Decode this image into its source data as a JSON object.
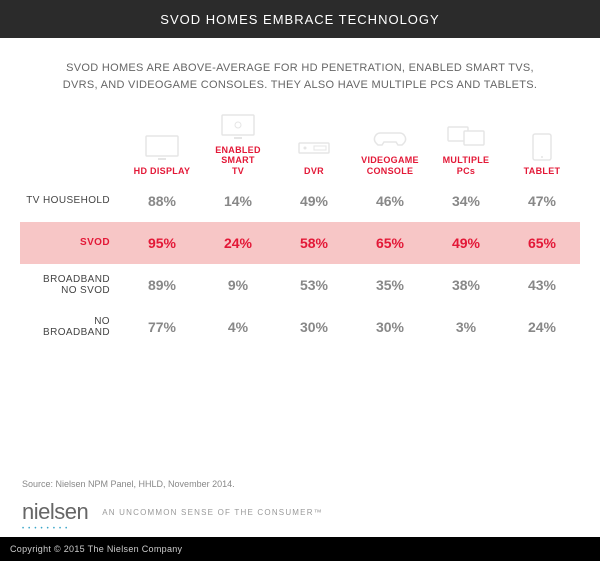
{
  "title": "SVOD HOMES EMBRACE TECHNOLOGY",
  "subtitle": "SVOD HOMES ARE ABOVE-AVERAGE FOR HD PENETRATION, ENABLED SMART TVS, DVRS, AND VIDEOGAME CONSOLES. THEY ALSO HAVE MULTIPLE PCS AND TABLETS.",
  "accent": "#e31837",
  "highlight_bg": "#f7c6c6",
  "header_fg": "#e31837",
  "value_fg": "#888888",
  "title_bg": "#2b2b2b",
  "columns": [
    {
      "label": "HD DISPLAY",
      "icon": "tv"
    },
    {
      "label": "ENABLED SMART TV",
      "icon": "smarttv"
    },
    {
      "label": "DVR",
      "icon": "dvr"
    },
    {
      "label": "VIDEOGAME CONSOLE",
      "icon": "console"
    },
    {
      "label": "MULTIPLE PCs",
      "icon": "pcs"
    },
    {
      "label": "TABLET",
      "icon": "tablet"
    }
  ],
  "rows": [
    {
      "label": "TV HOUSEHOLD",
      "values": [
        "88%",
        "14%",
        "49%",
        "46%",
        "34%",
        "47%"
      ],
      "highlight": false
    },
    {
      "label": "SVOD",
      "values": [
        "95%",
        "24%",
        "58%",
        "65%",
        "49%",
        "65%"
      ],
      "highlight": true
    },
    {
      "label": "BROADBAND NO SVOD",
      "values": [
        "89%",
        "9%",
        "53%",
        "35%",
        "38%",
        "43%"
      ],
      "highlight": false
    },
    {
      "label": "NO BROADBAND",
      "values": [
        "77%",
        "4%",
        "30%",
        "30%",
        "3%",
        "24%"
      ],
      "highlight": false
    }
  ],
  "source": "Source: Nielsen NPM Panel, HHLD, November 2014.",
  "brand": "nielsen",
  "tagline": "AN UNCOMMON SENSE OF THE CONSUMER™",
  "copyright": "Copyright © 2015 The Nielsen Company"
}
